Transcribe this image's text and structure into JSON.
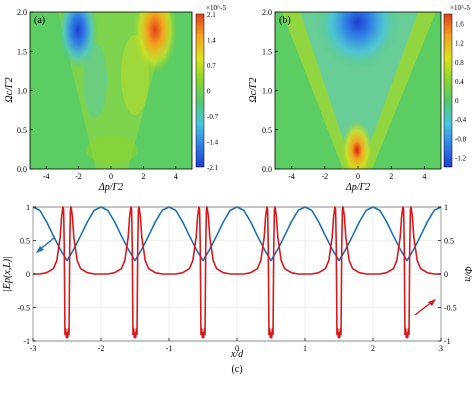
{
  "chart_data": [
    {
      "type": "heatmap",
      "panel_label": "(a)",
      "xlabel": "Δp/Γ2",
      "ylabel": "Ωc/Γ2",
      "xlim": [
        -5,
        5
      ],
      "ylim": [
        0,
        2
      ],
      "x_ticks": [
        "-4",
        "-2",
        "0",
        "2",
        "4"
      ],
      "y_ticks": [
        "0.0",
        "0.5",
        "1.0",
        "1.5",
        "2.0"
      ],
      "colorbar": {
        "exponent": "×10^-5",
        "ticks": [
          "2.1",
          "1.4",
          "0.7",
          "0",
          "-0.7",
          "-1.4",
          "-2.1"
        ],
        "range": [
          -2.1,
          2.1
        ],
        "colors": [
          "#1f3fd0",
          "#2f7fe6",
          "#49c6e0",
          "#52c96f",
          "#8bd62a",
          "#dde21e",
          "#f3a11e",
          "#e2401c"
        ]
      }
    },
    {
      "type": "heatmap",
      "panel_label": "(b)",
      "xlabel": "Δp/Γ2",
      "ylabel": "Ωc/Γ2",
      "xlim": [
        -5,
        5
      ],
      "ylim": [
        0,
        2
      ],
      "x_ticks": [
        "-4",
        "-2",
        "0",
        "2",
        "4"
      ],
      "y_ticks": [
        "0.0",
        "0.5",
        "1.0",
        "1.5",
        "2.0"
      ],
      "colorbar": {
        "exponent": "×10^-5",
        "ticks": [
          "1.6",
          "1.2",
          "0.8",
          "0.4",
          "0",
          "-0.4",
          "-0.8",
          "-1.2"
        ],
        "range": [
          -1.4,
          1.8
        ],
        "colors": [
          "#1f3fd0",
          "#2f7fe6",
          "#49c6e0",
          "#52c96f",
          "#8bd62a",
          "#dde21e",
          "#f3a11e",
          "#e2401c"
        ]
      }
    },
    {
      "type": "line",
      "panel_label": "(c)",
      "xlabel": "x/d",
      "ylabel_left": "|Ep(x,L)|",
      "ylabel_right": "Φ/π",
      "xlim": [
        -3,
        3
      ],
      "ylim": [
        -1,
        1
      ],
      "x_ticks": [
        "-3",
        "-2",
        "-1",
        "0",
        "1",
        "2",
        "3"
      ],
      "y_ticks": [
        "-1",
        "-0.5",
        "0",
        "0.5",
        "1"
      ],
      "series": [
        {
          "color": "#1f6fb4",
          "axis": "left",
          "x": [
            -3.0,
            -2.9,
            -2.8,
            -2.7,
            -2.6,
            -2.5,
            -2.4,
            -2.3,
            -2.2,
            -2.1,
            -2.0,
            -1.9,
            -1.8,
            -1.7,
            -1.6,
            -1.5,
            -1.4,
            -1.3,
            -1.2,
            -1.1,
            -1.0,
            -0.9,
            -0.8,
            -0.7,
            -0.6,
            -0.5,
            -0.4,
            -0.3,
            -0.2,
            -0.1,
            0.0,
            0.1,
            0.2,
            0.3,
            0.4,
            0.5,
            0.6,
            0.7,
            0.8,
            0.9,
            1.0,
            1.1,
            1.2,
            1.3,
            1.4,
            1.5,
            1.6,
            1.7,
            1.8,
            1.9,
            2.0,
            2.1,
            2.2,
            2.3,
            2.4,
            2.5,
            2.6,
            2.7,
            2.8,
            2.9,
            3.0
          ],
          "y": [
            1.0,
            0.95,
            0.78,
            0.57,
            0.37,
            0.2,
            0.37,
            0.57,
            0.78,
            0.95,
            1.0,
            0.95,
            0.78,
            0.57,
            0.37,
            0.2,
            0.37,
            0.57,
            0.78,
            0.95,
            1.0,
            0.95,
            0.78,
            0.57,
            0.37,
            0.2,
            0.37,
            0.57,
            0.78,
            0.95,
            1.0,
            0.95,
            0.78,
            0.57,
            0.37,
            0.2,
            0.37,
            0.57,
            0.78,
            0.95,
            1.0,
            0.95,
            0.78,
            0.57,
            0.37,
            0.2,
            0.37,
            0.57,
            0.78,
            0.95,
            1.0,
            0.95,
            0.78,
            0.57,
            0.37,
            0.2,
            0.37,
            0.57,
            0.78,
            0.95,
            1.0
          ]
        },
        {
          "color": "#d7191c",
          "axis": "right",
          "x": [
            -3.0,
            -2.9,
            -2.8,
            -2.7,
            -2.65,
            -2.6,
            -2.58,
            -2.56,
            -2.55,
            -2.54,
            -2.53,
            -2.52,
            -2.51,
            -2.5,
            -2.49,
            -2.48,
            -2.47,
            -2.46,
            -2.45,
            -2.44,
            -2.42,
            -2.4,
            -2.35,
            -2.3,
            -2.2,
            -2.1,
            -2.0,
            -1.9,
            -1.8,
            -1.7,
            -1.65,
            -1.6,
            -1.58,
            -1.56,
            -1.55,
            -1.54,
            -1.53,
            -1.52,
            -1.51,
            -1.5,
            -1.49,
            -1.48,
            -1.47,
            -1.46,
            -1.45,
            -1.44,
            -1.42,
            -1.4,
            -1.35,
            -1.3,
            -1.2,
            -1.1,
            -1.0,
            -0.9,
            -0.8,
            -0.7,
            -0.65,
            -0.6,
            -0.58,
            -0.56,
            -0.55,
            -0.54,
            -0.53,
            -0.52,
            -0.51,
            -0.5,
            -0.49,
            -0.48,
            -0.47,
            -0.46,
            -0.45,
            -0.44,
            -0.42,
            -0.4,
            -0.35,
            -0.3,
            -0.2,
            -0.1,
            0.0,
            0.1,
            0.2,
            0.3,
            0.35,
            0.4,
            0.42,
            0.44,
            0.45,
            0.46,
            0.47,
            0.48,
            0.49,
            0.5,
            0.51,
            0.52,
            0.53,
            0.54,
            0.55,
            0.56,
            0.58,
            0.6,
            0.65,
            0.7,
            0.8,
            0.9,
            1.0,
            1.1,
            1.2,
            1.3,
            1.35,
            1.4,
            1.42,
            1.44,
            1.45,
            1.46,
            1.47,
            1.48,
            1.49,
            1.5,
            1.51,
            1.52,
            1.53,
            1.54,
            1.55,
            1.56,
            1.58,
            1.6,
            1.65,
            1.7,
            1.8,
            1.9,
            2.0,
            2.1,
            2.2,
            2.3,
            2.35,
            2.4,
            2.42,
            2.44,
            2.45,
            2.46,
            2.47,
            2.48,
            2.49,
            2.5,
            2.51,
            2.52,
            2.53,
            2.54,
            2.55,
            2.56,
            2.58,
            2.6,
            2.65,
            2.7,
            2.8,
            2.9,
            3.0
          ],
          "y": [
            0.0,
            0.0,
            0.02,
            0.08,
            0.2,
            0.55,
            0.85,
            1.0,
            0.96,
            0.4,
            -0.9,
            -0.82,
            -0.95,
            -0.88,
            -0.95,
            -0.82,
            -0.9,
            0.4,
            0.96,
            1.0,
            0.85,
            0.55,
            0.2,
            0.08,
            0.02,
            0.0,
            0.0,
            0.0,
            0.02,
            0.08,
            0.2,
            0.55,
            0.85,
            1.0,
            0.96,
            0.4,
            -0.9,
            -0.82,
            -0.95,
            -0.88,
            -0.95,
            -0.82,
            -0.9,
            0.4,
            0.96,
            1.0,
            0.85,
            0.55,
            0.2,
            0.08,
            0.02,
            0.0,
            0.0,
            0.0,
            0.02,
            0.08,
            0.2,
            0.55,
            0.85,
            1.0,
            0.96,
            0.4,
            -0.9,
            -0.82,
            -0.95,
            -0.88,
            -0.95,
            -0.82,
            -0.9,
            0.4,
            0.96,
            1.0,
            0.85,
            0.55,
            0.2,
            0.08,
            0.02,
            0.0,
            0.0,
            0.0,
            0.02,
            0.08,
            0.2,
            0.55,
            0.85,
            1.0,
            0.96,
            0.4,
            -0.9,
            -0.82,
            -0.95,
            -0.88,
            -0.95,
            -0.82,
            -0.9,
            0.4,
            0.96,
            1.0,
            0.85,
            0.55,
            0.2,
            0.08,
            0.02,
            0.0,
            0.0,
            0.0,
            0.02,
            0.08,
            0.2,
            0.55,
            0.85,
            1.0,
            0.96,
            0.4,
            -0.9,
            -0.82,
            -0.95,
            -0.88,
            -0.95,
            -0.82,
            -0.9,
            0.4,
            0.96,
            1.0,
            0.85,
            0.55,
            0.2,
            0.08,
            0.02,
            0.0,
            0.0,
            0.0,
            0.02,
            0.08,
            0.2,
            0.55,
            0.85,
            1.0,
            0.96,
            0.4,
            -0.9,
            -0.82,
            -0.95,
            -0.88,
            -0.95,
            -0.82,
            -0.9,
            0.4,
            0.96,
            1.0,
            0.85,
            0.55,
            0.2,
            0.08,
            0.02,
            0.0,
            0.0
          ]
        }
      ]
    }
  ]
}
